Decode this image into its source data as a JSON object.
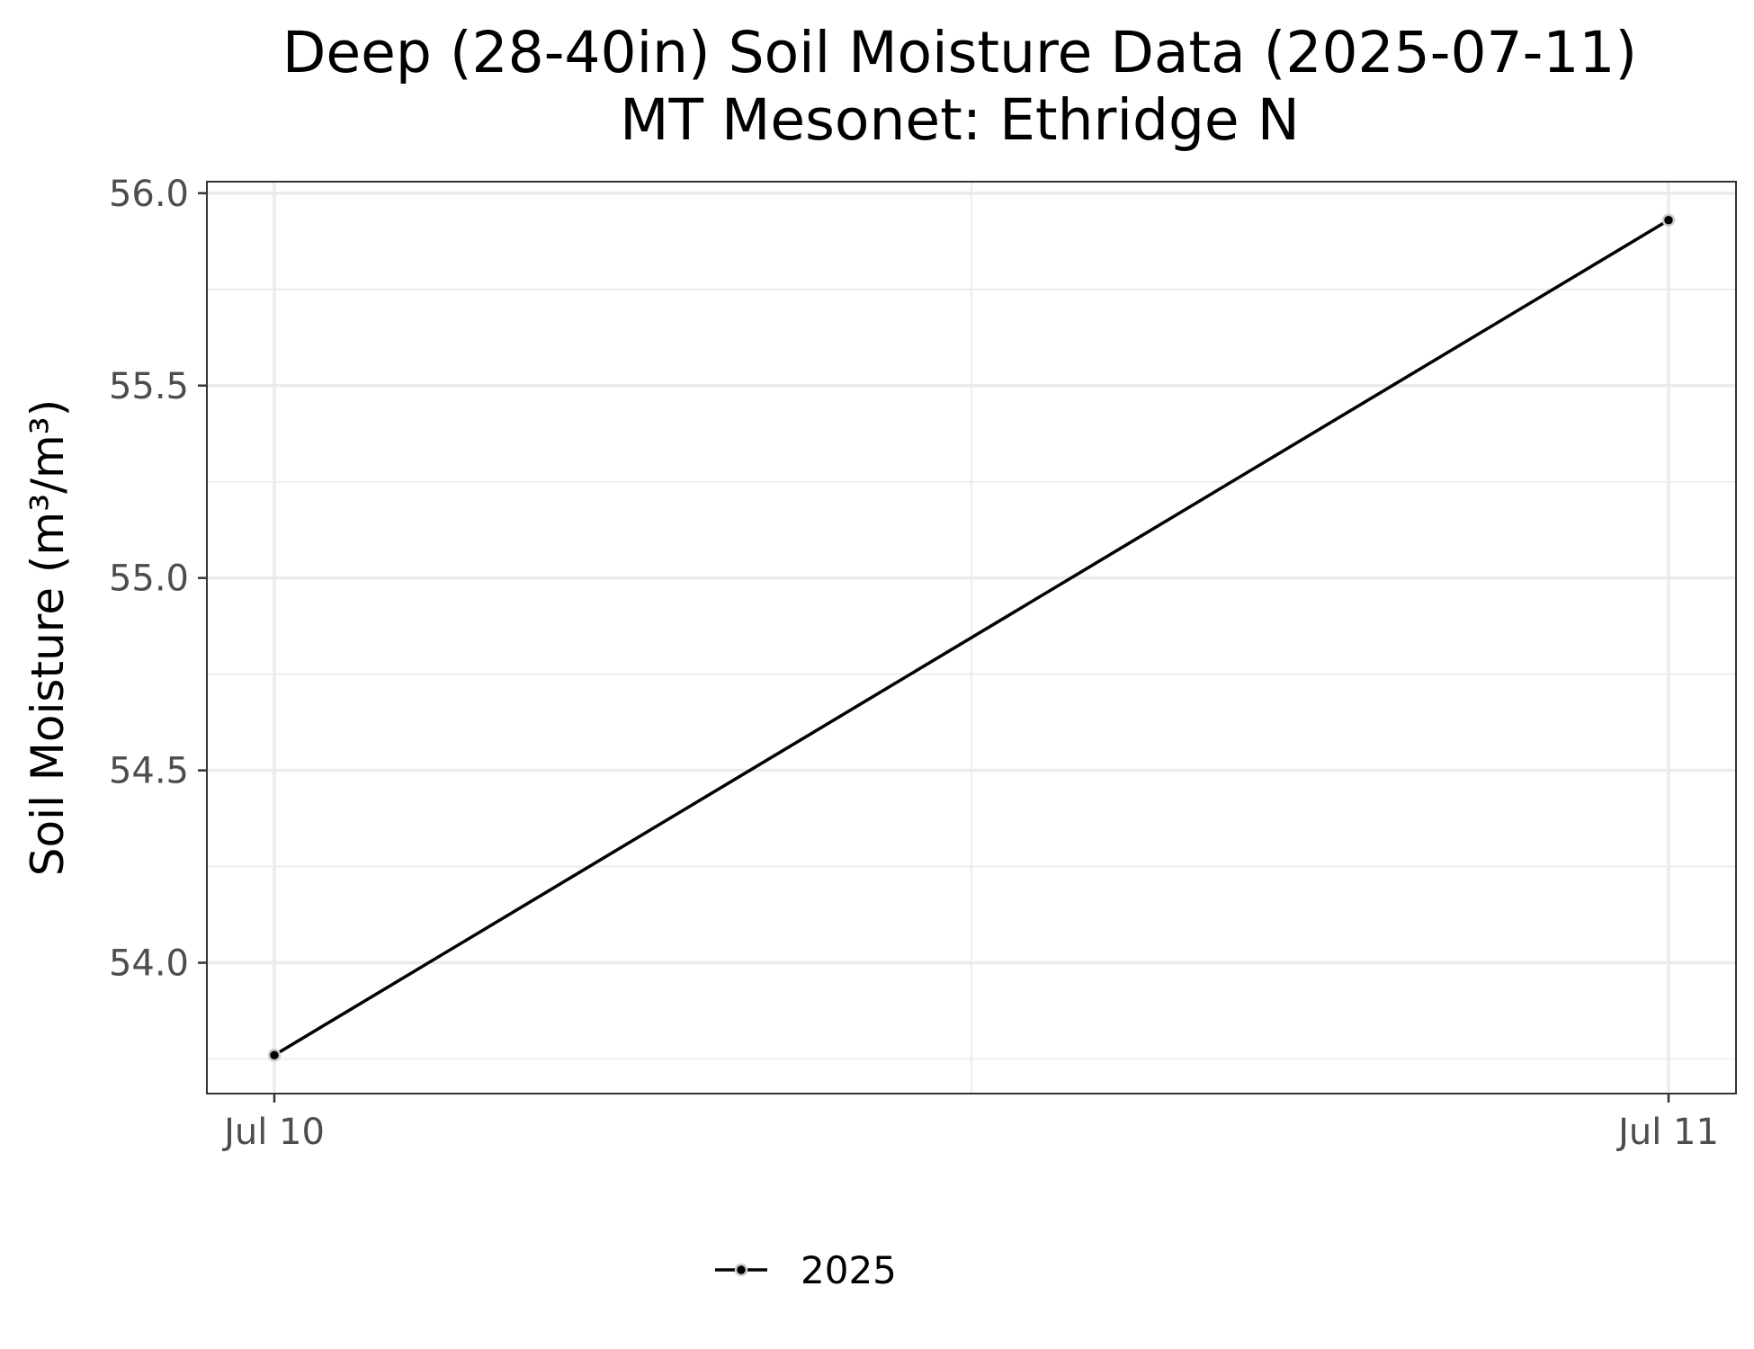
{
  "chart_data": {
    "type": "line",
    "title": "Deep (28-40in) Soil Moisture Data (2025-07-11)",
    "subtitle": "MT Mesonet: Ethridge N",
    "xlabel": "",
    "ylabel": "Soil Moisture (m³/m³)",
    "x": [
      "2025-07-10",
      "2025-07-11"
    ],
    "x_tick_labels": [
      "Jul 10",
      "Jul 11"
    ],
    "y_ticks": [
      54.0,
      54.5,
      55.0,
      55.5,
      56.0
    ],
    "y_tick_labels": [
      "54.0",
      "54.5",
      "55.0",
      "55.5",
      "56.0"
    ],
    "ylim": [
      53.66,
      56.03
    ],
    "grid": true,
    "legend_position": "bottom",
    "series": [
      {
        "name": "2025",
        "color": "#000000",
        "values": [
          53.76,
          55.93
        ]
      }
    ]
  }
}
